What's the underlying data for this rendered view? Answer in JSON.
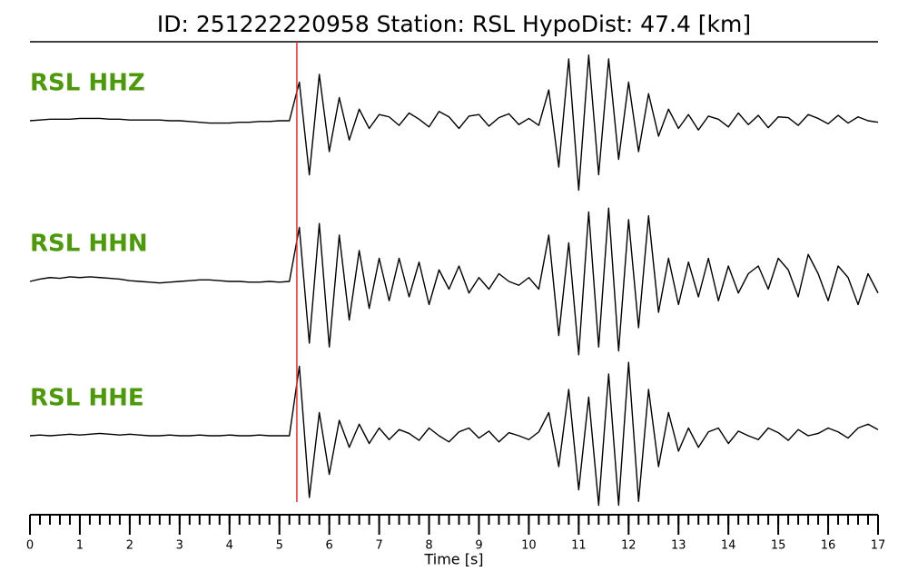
{
  "chart_data": {
    "type": "line",
    "title": "ID: 251222220958   Station: RSL   HypoDist:    47.4 [km]",
    "xlabel": "Time [s]",
    "xlim": [
      0,
      17
    ],
    "ylim": [
      -1,
      1
    ],
    "xticks": [
      0,
      1,
      2,
      3,
      4,
      5,
      6,
      7,
      8,
      9,
      10,
      11,
      12,
      13,
      14,
      15,
      16,
      17
    ],
    "xminorticks": [
      0,
      0.2,
      0.4,
      0.6,
      0.8,
      1,
      1.2,
      1.4,
      1.6,
      1.8,
      2,
      2.2,
      2.4,
      2.6,
      2.8,
      3,
      3.2,
      3.4,
      3.6,
      3.8,
      4,
      4.2,
      4.4,
      4.6,
      4.8,
      5,
      5.2,
      5.4,
      5.6,
      5.8,
      6,
      6.2,
      6.4,
      6.6,
      6.8,
      7,
      7.2,
      7.4,
      7.6,
      7.8,
      8,
      8.2,
      8.4,
      8.6,
      8.8,
      9,
      9.2,
      9.4,
      9.6,
      9.8,
      10,
      10.2,
      10.4,
      10.6,
      10.8,
      11,
      11.2,
      11.4,
      11.6,
      11.8,
      12,
      12.2,
      12.4,
      12.6,
      12.8,
      13,
      13.2,
      13.4,
      13.6,
      13.8,
      14,
      14.2,
      14.4,
      14.6,
      14.8,
      15,
      15.2,
      15.4,
      15.6,
      15.8,
      16,
      16.2,
      16.4,
      16.6,
      16.8,
      17
    ],
    "x": [
      0,
      0.2,
      0.4,
      0.6,
      0.8,
      1,
      1.2,
      1.4,
      1.6,
      1.8,
      2,
      2.2,
      2.4,
      2.6,
      2.8,
      3,
      3.2,
      3.4,
      3.6,
      3.8,
      4,
      4.2,
      4.4,
      4.6,
      4.8,
      5,
      5.2,
      5.4,
      5.6,
      5.8,
      6,
      6.2,
      6.4,
      6.6,
      6.8,
      7,
      7.2,
      7.4,
      7.6,
      7.8,
      8,
      8.2,
      8.4,
      8.6,
      8.8,
      9,
      9.2,
      9.4,
      9.6,
      9.8,
      10,
      10.2,
      10.4,
      10.6,
      10.8,
      11,
      11.2,
      11.4,
      11.6,
      11.8,
      12,
      12.2,
      12.4,
      12.6,
      12.8,
      13,
      13.2,
      13.4,
      13.6,
      13.8,
      14,
      14.2,
      14.4,
      14.6,
      14.8,
      15,
      15.2,
      15.4,
      15.6,
      15.8,
      16,
      16.2,
      16.4,
      16.6,
      16.8,
      17
    ],
    "pick": 5.35,
    "pick_color": "#e8302f",
    "label_color": "#4c9a0a",
    "series": [
      {
        "name": "RSL HHZ",
        "color": "#000000",
        "values": [
          0.0,
          0.01,
          0.02,
          0.02,
          0.02,
          0.03,
          0.03,
          0.03,
          0.02,
          0.02,
          0.01,
          0.01,
          0.01,
          0.01,
          0.0,
          0.0,
          -0.01,
          -0.02,
          -0.03,
          -0.03,
          -0.03,
          -0.02,
          -0.02,
          -0.01,
          -0.01,
          0.0,
          0.0,
          0.5,
          -0.7,
          0.6,
          -0.4,
          0.3,
          -0.25,
          0.15,
          -0.1,
          0.08,
          0.05,
          -0.06,
          0.1,
          0.02,
          -0.08,
          0.12,
          0.05,
          -0.1,
          0.06,
          0.08,
          -0.07,
          0.04,
          0.09,
          -0.05,
          0.03,
          -0.06,
          0.4,
          -0.6,
          0.8,
          -0.9,
          0.85,
          -0.7,
          0.8,
          -0.5,
          0.5,
          -0.4,
          0.35,
          -0.2,
          0.15,
          -0.1,
          0.08,
          -0.12,
          0.06,
          0.02,
          -0.08,
          0.1,
          -0.05,
          0.07,
          -0.09,
          0.05,
          0.04,
          -0.06,
          0.08,
          0.03,
          -0.04,
          0.07,
          -0.03,
          0.05,
          0.0,
          -0.02
        ]
      },
      {
        "name": "RSL HHN",
        "color": "#000000",
        "values": [
          0.0,
          0.03,
          0.05,
          0.04,
          0.06,
          0.05,
          0.06,
          0.05,
          0.04,
          0.03,
          0.01,
          0.0,
          -0.01,
          -0.02,
          -0.01,
          0.0,
          0.01,
          0.02,
          0.02,
          0.01,
          0.0,
          0.0,
          -0.01,
          -0.01,
          0.0,
          -0.01,
          0.0,
          0.7,
          -0.8,
          0.75,
          -0.85,
          0.6,
          -0.5,
          0.4,
          -0.35,
          0.3,
          -0.25,
          0.3,
          -0.2,
          0.25,
          -0.3,
          0.15,
          -0.1,
          0.2,
          -0.15,
          0.05,
          -0.1,
          0.1,
          0.0,
          -0.05,
          0.05,
          -0.1,
          0.6,
          -0.7,
          0.5,
          -0.95,
          0.9,
          -0.85,
          0.95,
          -0.9,
          0.8,
          -0.6,
          0.85,
          -0.4,
          0.3,
          -0.3,
          0.25,
          -0.2,
          0.3,
          -0.25,
          0.2,
          -0.15,
          0.1,
          0.2,
          -0.1,
          0.3,
          0.15,
          -0.2,
          0.35,
          0.1,
          -0.25,
          0.2,
          0.05,
          -0.3,
          0.1,
          -0.15
        ]
      },
      {
        "name": "RSL HHE",
        "color": "#000000",
        "values": [
          0.0,
          0.01,
          0.0,
          0.01,
          0.02,
          0.01,
          0.02,
          0.03,
          0.02,
          0.01,
          0.02,
          0.01,
          0.0,
          0.0,
          0.01,
          0.0,
          0.0,
          0.01,
          0.0,
          0.0,
          0.01,
          0.0,
          0.0,
          0.01,
          0.0,
          0.0,
          0.0,
          0.9,
          -0.8,
          0.3,
          -0.5,
          0.2,
          -0.15,
          0.15,
          -0.1,
          0.1,
          -0.05,
          0.08,
          0.03,
          -0.06,
          0.1,
          0.0,
          -0.08,
          0.05,
          0.1,
          -0.03,
          0.06,
          -0.08,
          0.04,
          0.0,
          -0.05,
          0.05,
          0.3,
          -0.4,
          0.6,
          -0.7,
          0.5,
          -0.9,
          0.8,
          -0.9,
          0.95,
          -0.85,
          0.6,
          -0.4,
          0.3,
          -0.2,
          0.1,
          -0.15,
          0.05,
          0.1,
          -0.1,
          0.06,
          0.0,
          -0.05,
          0.1,
          0.04,
          -0.06,
          0.08,
          0.0,
          0.03,
          0.1,
          0.05,
          -0.03,
          0.1,
          0.15,
          0.08
        ]
      }
    ]
  }
}
